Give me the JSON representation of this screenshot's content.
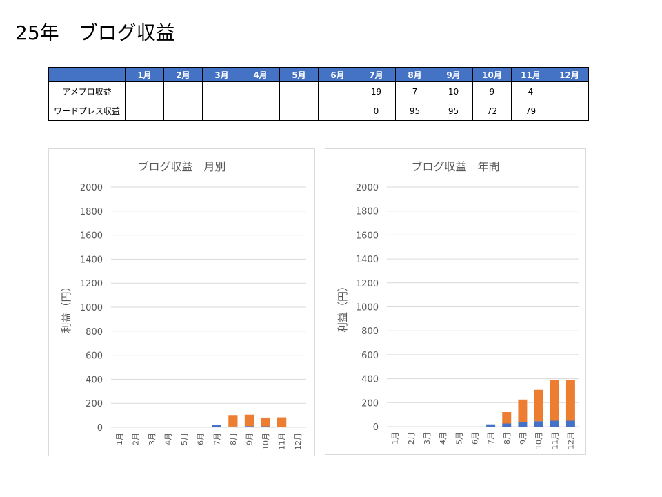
{
  "page_title": "25年　ブログ収益",
  "table": {
    "months": [
      "1月",
      "2月",
      "3月",
      "4月",
      "5月",
      "6月",
      "7月",
      "8月",
      "9月",
      "10月",
      "11月",
      "12月"
    ],
    "rows": [
      {
        "label": "アメブロ収益",
        "values": [
          "",
          "",
          "",
          "",
          "",
          "",
          "19",
          "7",
          "10",
          "9",
          "4",
          ""
        ]
      },
      {
        "label": "ワードプレス収益",
        "values": [
          "",
          "",
          "",
          "",
          "",
          "",
          "0",
          "95",
          "95",
          "72",
          "79",
          ""
        ]
      }
    ]
  },
  "colors": {
    "header": "#4472c4",
    "ameblo": "#4472c4",
    "wordpress": "#ed7d31",
    "grid": "#d9d9d9"
  },
  "chart_data": [
    {
      "type": "bar",
      "stacked": true,
      "title": "ブログ収益　月別",
      "ylabel": "利益（円）",
      "xlabel": "",
      "categories": [
        "1月",
        "2月",
        "3月",
        "4月",
        "5月",
        "6月",
        "7月",
        "8月",
        "9月",
        "10月",
        "11月",
        "12月"
      ],
      "yticks": [
        "0",
        "200",
        "400",
        "600",
        "800",
        "1000",
        "1200",
        "1400",
        "1600",
        "1800",
        "2000"
      ],
      "ylim": [
        0,
        2000
      ],
      "grid": true,
      "series": [
        {
          "values": [
            0,
            0,
            0,
            0,
            0,
            0,
            19,
            7,
            10,
            9,
            4,
            0
          ],
          "color": "#4472c4"
        },
        {
          "values": [
            0,
            0,
            0,
            0,
            0,
            0,
            0,
            95,
            95,
            72,
            79,
            0
          ],
          "color": "#ed7d31"
        }
      ]
    },
    {
      "type": "bar",
      "stacked": true,
      "title": "ブログ収益　年間",
      "ylabel": "利益（円）",
      "xlabel": "",
      "categories": [
        "1月",
        "2月",
        "3月",
        "4月",
        "5月",
        "6月",
        "7月",
        "8月",
        "9月",
        "10月",
        "11月",
        "12月"
      ],
      "yticks": [
        "0",
        "200",
        "400",
        "600",
        "800",
        "1000",
        "1200",
        "1400",
        "1600",
        "1800",
        "2000"
      ],
      "ylim": [
        0,
        2000
      ],
      "grid": true,
      "series": [
        {
          "values": [
            0,
            0,
            0,
            0,
            0,
            0,
            19,
            26,
            36,
            45,
            49,
            49
          ],
          "color": "#4472c4"
        },
        {
          "values": [
            0,
            0,
            0,
            0,
            0,
            0,
            0,
            95,
            190,
            262,
            341,
            341
          ],
          "color": "#ed7d31"
        }
      ]
    }
  ]
}
